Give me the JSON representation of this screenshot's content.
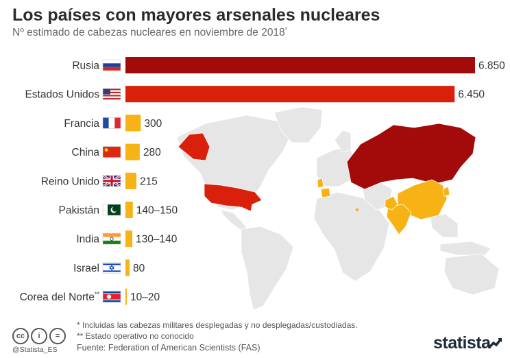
{
  "header": {
    "title": "Los países con mayores arsenales nucleares",
    "subtitle": "Nº estimado de cabezas nucleares en noviembre de 2018",
    "subtitle_mark": "*"
  },
  "chart_data": {
    "type": "bar",
    "orientation": "horizontal",
    "categories": [
      "Rusia",
      "Estados Unidos",
      "Francia",
      "China",
      "Reino Unido",
      "Pakistán",
      "India",
      "Israel",
      "Corea del Norte"
    ],
    "values": [
      6850,
      6450,
      300,
      280,
      215,
      145,
      135,
      80,
      15
    ],
    "value_labels": [
      "6.850",
      "6.450",
      "300",
      "280",
      "215",
      "140–150",
      "130–140",
      "80",
      "10–20"
    ],
    "category_marks": [
      "",
      "",
      "",
      "",
      "",
      "",
      "",
      "",
      "**"
    ],
    "bar_colors": [
      "#a30a0a",
      "#d9200b",
      "#f7b215",
      "#f7b215",
      "#f7b215",
      "#f7b215",
      "#f7b215",
      "#f7b215",
      "#f7b215"
    ],
    "flags": [
      "russia-flag",
      "usa-flag",
      "france-flag",
      "china-flag",
      "uk-flag",
      "pakistan-flag",
      "india-flag",
      "israel-flag",
      "north-korea-flag"
    ],
    "legend": "none",
    "grid": false
  },
  "map": {
    "base_color": "#e6e6e6",
    "highlight_colors": {
      "over_6000": "#a30a0a",
      "usa": "#d9200b",
      "others": "#f7b215"
    }
  },
  "footer": {
    "note1": "*   Incluidas las cabezas militares desplegadas y no desplegadas/custodiadas.",
    "note2": "** Estado operativo no conocido",
    "source": "Fuente: Federation of American Scientists (FAS)",
    "handle": "@Statista_ES",
    "logo": "statista",
    "cc_icons": [
      "cc",
      "i",
      "="
    ]
  }
}
